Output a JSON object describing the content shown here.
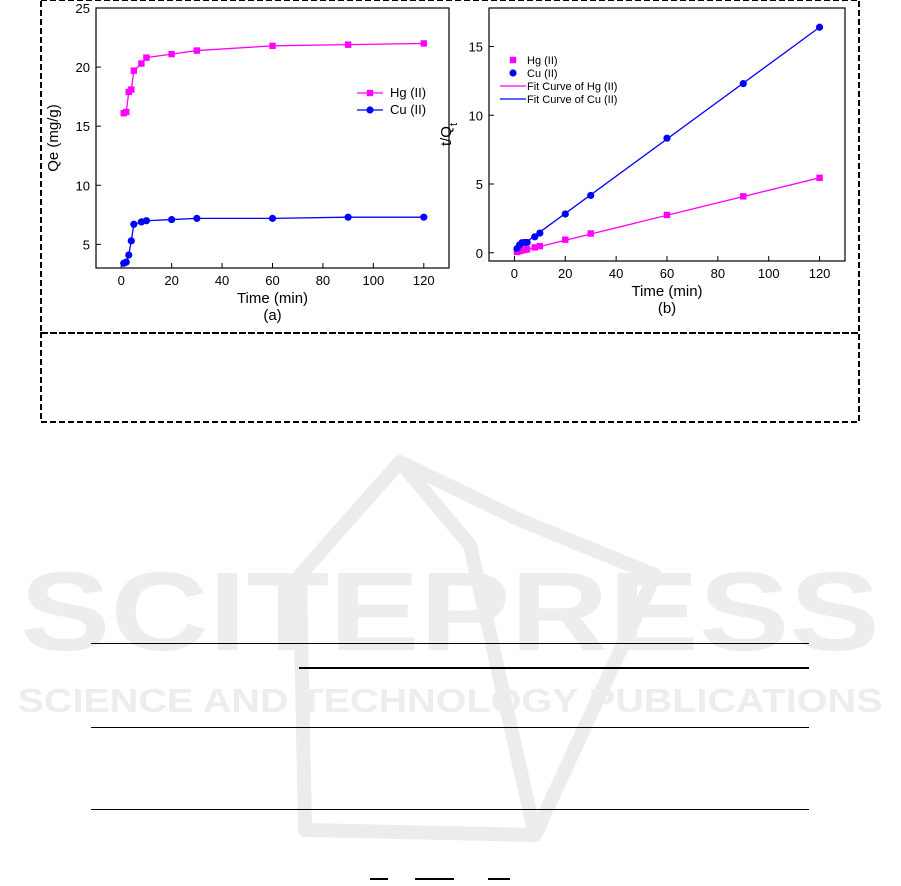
{
  "watermark": {
    "brand": "SCITEPRESS",
    "tagline": "SCIENCE AND TECHNOLOGY PUBLICATIONS"
  },
  "chart_data": [
    {
      "type": "line",
      "panel_label": "(a)",
      "xlabel": "Time (min)",
      "ylabel": "Qe (mg/g)",
      "xlim": [
        -10,
        130
      ],
      "ylim": [
        3,
        25
      ],
      "xticks": [
        0,
        20,
        40,
        60,
        80,
        100,
        120
      ],
      "yticks": [
        5,
        10,
        15,
        20,
        25
      ],
      "grid": false,
      "legend": "right",
      "series": [
        {
          "name": "Hg (II)",
          "color": "#ff00ff",
          "marker": "square",
          "x": [
            1,
            2,
            3,
            4,
            5,
            8,
            10,
            20,
            30,
            60,
            90,
            120
          ],
          "y": [
            16.1,
            16.2,
            17.9,
            18.1,
            19.7,
            20.3,
            20.8,
            21.1,
            21.4,
            21.8,
            21.9,
            22.0
          ]
        },
        {
          "name": "Cu (II)",
          "color": "#0000ff",
          "marker": "circle",
          "x": [
            1,
            2,
            3,
            4,
            5,
            8,
            10,
            20,
            30,
            60,
            90,
            120
          ],
          "y": [
            3.4,
            3.5,
            4.1,
            5.3,
            6.7,
            6.9,
            7.0,
            7.1,
            7.2,
            7.2,
            7.3,
            7.3
          ]
        }
      ]
    },
    {
      "type": "scatter",
      "panel_label": "(b)",
      "xlabel": "Time (min)",
      "ylabel": "t/Q",
      "ylabel_sub": "t",
      "xlim": [
        -10,
        130
      ],
      "ylim": [
        -0.6,
        17.8
      ],
      "xticks": [
        0,
        20,
        40,
        60,
        80,
        100,
        120
      ],
      "yticks": [
        0,
        5,
        10,
        15
      ],
      "grid": false,
      "legend": "top-left",
      "series": [
        {
          "name": "Hg (II)",
          "color": "#ff00ff",
          "marker": "square",
          "x": [
            1,
            2,
            3,
            4,
            5,
            8,
            10,
            20,
            30,
            60,
            90,
            120
          ],
          "y": [
            0.06,
            0.12,
            0.17,
            0.22,
            0.25,
            0.39,
            0.48,
            0.95,
            1.4,
            2.75,
            4.1,
            5.45
          ]
        },
        {
          "name": "Cu (II)",
          "color": "#0000ff",
          "marker": "circle",
          "x": [
            1,
            2,
            3,
            4,
            5,
            8,
            10,
            20,
            30,
            60,
            90,
            120
          ],
          "y": [
            0.29,
            0.57,
            0.73,
            0.75,
            0.75,
            1.16,
            1.43,
            2.82,
            4.17,
            8.33,
            12.3,
            16.4
          ]
        },
        {
          "name": "Fit Curve of Hg (II)",
          "color": "#ff00ff",
          "marker": "none",
          "x": [
            0,
            120
          ],
          "y": [
            0.0,
            5.45
          ]
        },
        {
          "name": "Fit Curve of Cu (II)",
          "color": "#0000ff",
          "marker": "none",
          "x": [
            0,
            120
          ],
          "y": [
            0.15,
            16.4
          ]
        }
      ]
    }
  ]
}
